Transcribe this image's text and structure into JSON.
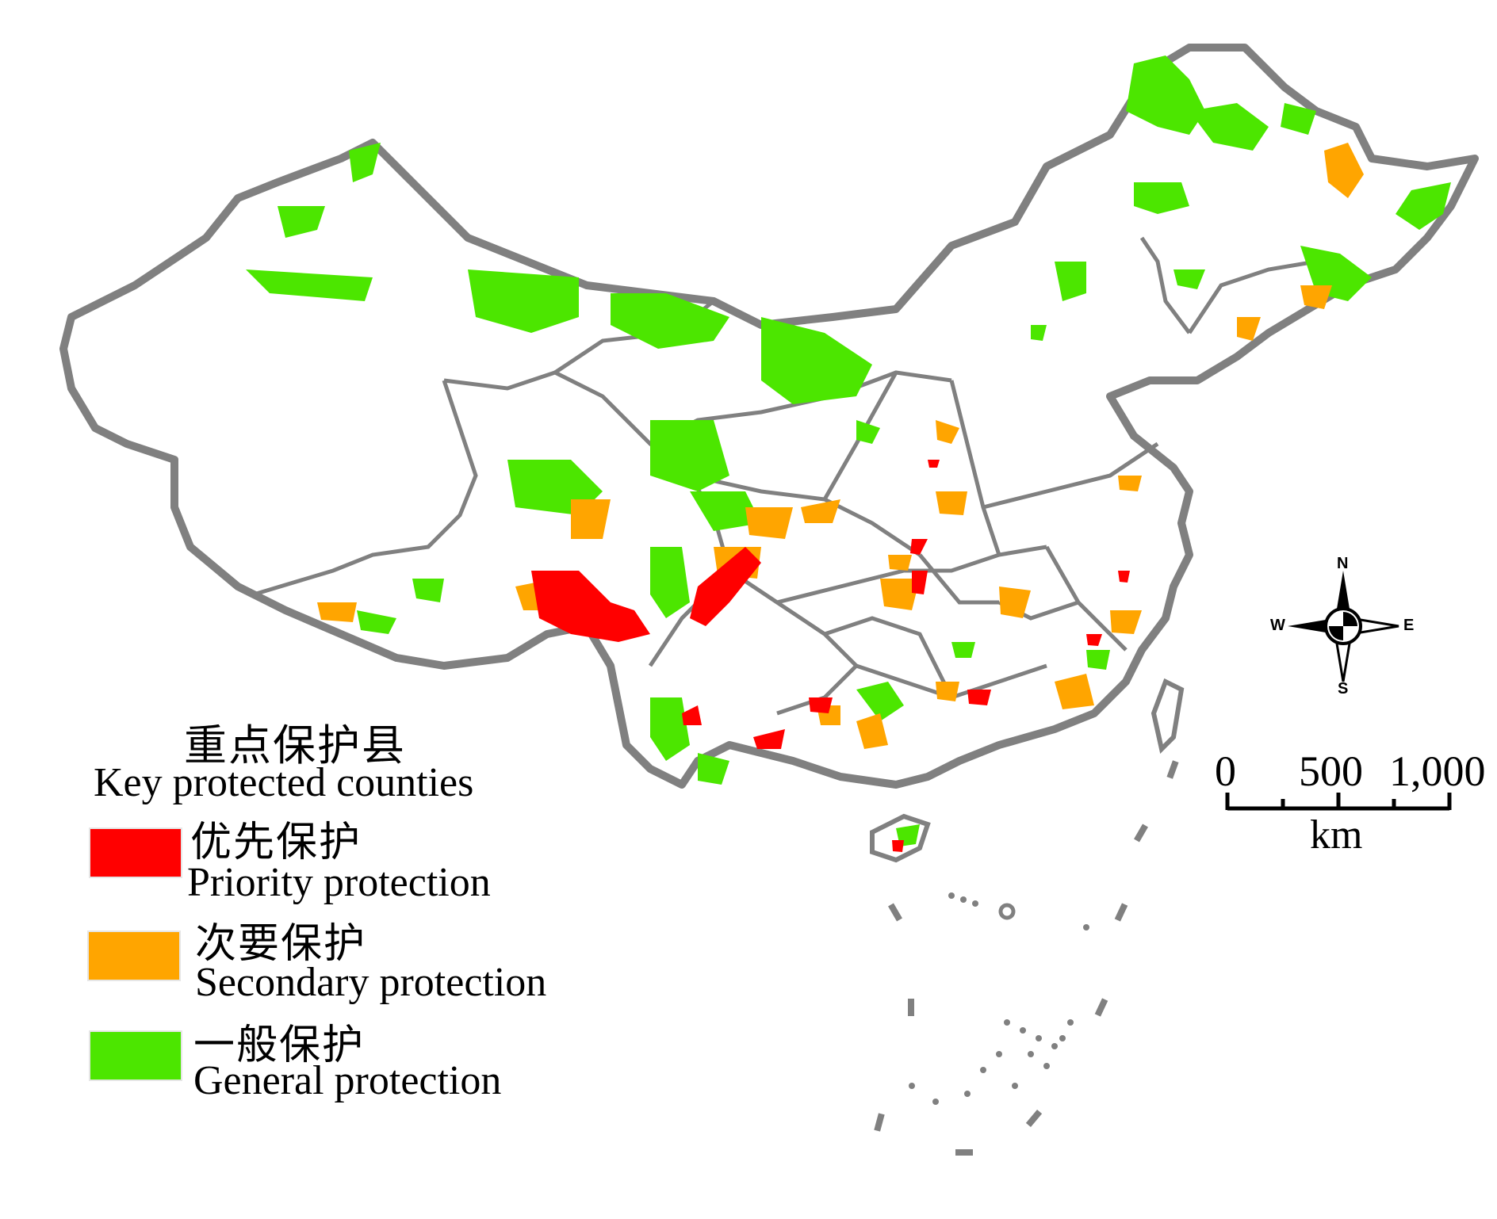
{
  "legend": {
    "title_cn": "重点保护县",
    "title_en": "Key protected counties",
    "items": [
      {
        "label_cn": "优先保护",
        "label_en": "Priority protection",
        "color": "#ff0000"
      },
      {
        "label_cn": "次要保护",
        "label_en": "Secondary protection",
        "color": "#ffa500"
      },
      {
        "label_cn": "一般保护",
        "label_en": "General protection",
        "color": "#4ce600"
      }
    ]
  },
  "scale_bar": {
    "ticks": [
      "0",
      "500",
      "1,000"
    ],
    "unit": "km"
  },
  "compass": {
    "north": "N",
    "south": "S",
    "east": "E",
    "west": "W"
  },
  "colors": {
    "boundary": "#808080",
    "background": "#ffffff"
  }
}
